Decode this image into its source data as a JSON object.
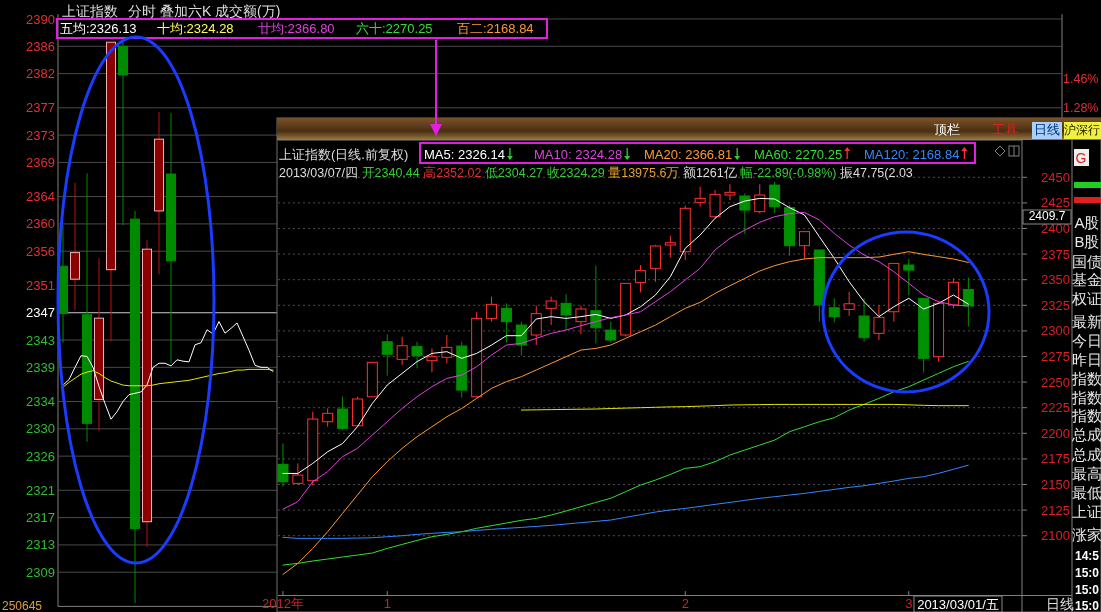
{
  "chart_data": [
    {
      "type": "candlestick",
      "title": "上证指数",
      "subtitle": "分时 叠加六K 成交额(万)",
      "categories": [
        null,
        null,
        null,
        null,
        null,
        null,
        null,
        null,
        null,
        null,
        null,
        null,
        null,
        null,
        null,
        null,
        null,
        null,
        null,
        null,
        null,
        null,
        null,
        null,
        null,
        null,
        null,
        null,
        null,
        null,
        null,
        null,
        null,
        null,
        null,
        null,
        null,
        null,
        null,
        null,
        null,
        null,
        null,
        null,
        null,
        null,
        null,
        null,
        null,
        null,
        null,
        null,
        null,
        null,
        null,
        null,
        null,
        null,
        null,
        null,
        null,
        null,
        null,
        null,
        null,
        null,
        null,
        null,
        null,
        null,
        null,
        null,
        null,
        null,
        null,
        null,
        null,
        null,
        null,
        null,
        null,
        null,
        null,
        null,
        null,
        null,
        null,
        null,
        null,
        null,
        null,
        null,
        null,
        null,
        null,
        null,
        null,
        null,
        null,
        null,
        null,
        null,
        null,
        null,
        null,
        null,
        null,
        null,
        null,
        null,
        null,
        null,
        null,
        null,
        null,
        null,
        null,
        null,
        null,
        null,
        null,
        null,
        null,
        null,
        null,
        null,
        null,
        null,
        null,
        null,
        null,
        null,
        null,
        null,
        null,
        null,
        null,
        null,
        null,
        null,
        null,
        null,
        null,
        null,
        null,
        null,
        null,
        null,
        null,
        null,
        null,
        null,
        null,
        null,
        null,
        null,
        null,
        null,
        null,
        null,
        null,
        null,
        null,
        null,
        null,
        null,
        null
      ],
      "ohlc": [
        [
          2353.8,
          2359.8,
          2342.6,
          2346.9
        ],
        null,
        [
          2351.9,
          2366.0,
          2347.4,
          2355.8
        ],
        null,
        [
          2346.7,
          2367.4,
          2328.1,
          2330.8
        ],
        null,
        [
          2334.3,
          2355.0,
          2329.7,
          2346.2
        ],
        null,
        [
          2353.3,
          2386.6,
          2342.8,
          2386.6
        ],
        null,
        [
          2386.0,
          2386.8,
          2359.8,
          2381.8
        ],
        null,
        [
          2360.7,
          2361.9,
          2304.5,
          2315.4
        ],
        null,
        [
          2316.4,
          2357.6,
          2312.7,
          2356.3
        ],
        null,
        [
          2361.9,
          2376.4,
          2352.6,
          2372.4
        ],
        null,
        [
          2367.3,
          2376.2,
          2339.6,
          2354.6
        ],
        null,
        null,
        null,
        null,
        null,
        null,
        null,
        null,
        null,
        null,
        null,
        null,
        null,
        null,
        null,
        null,
        null,
        null,
        null,
        null,
        null,
        null,
        null,
        null,
        null,
        null,
        null,
        null,
        null,
        null,
        null,
        null,
        null,
        null,
        null,
        null,
        null,
        null,
        null,
        null,
        null,
        null,
        null,
        null,
        null,
        null,
        null,
        null,
        null,
        null,
        null,
        null,
        null,
        null,
        null,
        null,
        null,
        null,
        null,
        null,
        null,
        null,
        null,
        null,
        null,
        null,
        null,
        null,
        null,
        null,
        null,
        null,
        null,
        null,
        null,
        null,
        null,
        null,
        null,
        null,
        null,
        null,
        null,
        null,
        null,
        null,
        null,
        null,
        null,
        null,
        null,
        null,
        null,
        null,
        null,
        null,
        null,
        null,
        null,
        null,
        null,
        null,
        null,
        null,
        null,
        null,
        null,
        null,
        null,
        null,
        null,
        null,
        null,
        null,
        null,
        null,
        null,
        null,
        null,
        null,
        null,
        null,
        null,
        null,
        null,
        null,
        null,
        null,
        null,
        null,
        null,
        null,
        null,
        null,
        null,
        null,
        null,
        null,
        null,
        null,
        null,
        null,
        null,
        null,
        null,
        null,
        null,
        null
      ],
      "series": [
        {
          "type": "line",
          "color": "#ffffff",
          "values": [
            2336.4,
            2337.2,
            2339.0,
            2340.7,
            2340.6,
            2339.0,
            2336.2,
            2333.7,
            2331.4,
            2332.5,
            2334.0,
            2335.0,
            2335.2,
            2335.4,
            2336.4,
            2339.0,
            2339.6,
            2339.6,
            2339.2,
            2340.1,
            2339.9,
            2339.8,
            2342.3,
            2342.6,
            2344.5,
            2343.9,
            2345.7,
            2344.0,
            2344.7,
            2345.5,
            2343.5,
            2341.5,
            2339.3,
            2339.0,
            2339.0,
            2338.4,
            null,
            null,
            null,
            null,
            null,
            null,
            null,
            null,
            null,
            null,
            null,
            null,
            null,
            null,
            null,
            null,
            null,
            null,
            null,
            null,
            null,
            null,
            null,
            null,
            null,
            null,
            null,
            null,
            null,
            null,
            null,
            null,
            null,
            null,
            null,
            null,
            null,
            null,
            null,
            null,
            null,
            null,
            null,
            null,
            null,
            null,
            null,
            null,
            null,
            null,
            null,
            null,
            null,
            null,
            null,
            null,
            null,
            null,
            null,
            null,
            null,
            null,
            null,
            null,
            null,
            null,
            null,
            null,
            null,
            null,
            null,
            null,
            null,
            null,
            null,
            null,
            null,
            null,
            null,
            null,
            null,
            null,
            null,
            null,
            null,
            null,
            null,
            null,
            null,
            null,
            null,
            null,
            null,
            null,
            null,
            null,
            null,
            null,
            null,
            null,
            null,
            null,
            null,
            null,
            null,
            null,
            null,
            null,
            null,
            null,
            null,
            null,
            null,
            null,
            null,
            null,
            null,
            null,
            null,
            null,
            null,
            null,
            null,
            null,
            null,
            null,
            null,
            null,
            null,
            null,
            null
          ]
        },
        {
          "type": "line",
          "color": "#e6e600",
          "values": [
            2336.1,
            2336.8,
            2337.4,
            2338.0,
            2338.3,
            2338.5,
            2338.1,
            2337.5,
            2337.0,
            2336.7,
            2336.4,
            2336.3,
            2336.3,
            2336.3,
            2336.3,
            2336.4,
            2336.6,
            2336.7,
            2336.8,
            2336.9,
            2337.0,
            2337.1,
            2337.3,
            2337.5,
            2337.7,
            2337.9,
            2338.1,
            2338.2,
            2338.4,
            2338.6,
            2338.6,
            2338.7,
            2338.7,
            2338.7,
            2338.7,
            2338.6,
            null,
            null,
            null,
            null,
            null,
            null,
            null,
            null,
            null,
            null,
            null,
            null,
            null,
            null,
            null,
            null,
            null,
            null,
            null,
            null,
            null,
            null,
            null,
            null,
            null,
            null,
            null,
            null,
            null,
            null,
            null,
            null,
            null,
            null,
            null,
            null,
            null,
            null,
            null,
            null,
            null,
            null,
            null,
            null,
            null,
            null,
            null,
            null,
            null,
            null,
            null,
            null,
            null,
            null,
            null,
            null,
            null,
            null,
            null,
            null,
            null,
            null,
            null,
            null,
            null,
            null,
            null,
            null,
            null,
            null,
            null,
            null,
            null,
            null,
            null,
            null,
            null,
            null,
            null,
            null,
            null,
            null,
            null,
            null,
            null,
            null,
            null,
            null,
            null,
            null,
            null,
            null,
            null,
            null,
            null,
            null,
            null,
            null,
            null,
            null,
            null,
            null,
            null,
            null,
            null,
            null,
            null,
            null,
            null,
            null,
            null,
            null,
            null,
            null,
            null,
            null,
            null,
            null,
            null,
            null,
            null,
            null,
            null,
            null,
            null,
            null,
            null,
            null,
            null,
            null,
            null
          ]
        }
      ],
      "ylim": [
        2304,
        2390.7
      ],
      "yticks": [
        2390,
        2386,
        2382,
        2377,
        2373,
        2369,
        2364,
        2360,
        2356,
        2351,
        2347,
        2343,
        2339,
        2334,
        2330,
        2326,
        2321,
        2317,
        2313,
        2309
      ],
      "y2lim": [
        -1.83,
        1.86
      ],
      "y2ticks": [
        {
          "value": 1.46,
          "label": "1.46%"
        },
        {
          "value": 1.28,
          "label": "1.28%"
        }
      ],
      "ref_lines": [
        {
          "axis": "y",
          "value": 2347
        }
      ],
      "grid": "y",
      "annotations": [
        "五均:2326.13",
        "十均:2324.28",
        "廿均:2366.80",
        "六十:2270.25",
        "百二:2168.84",
        "250645"
      ]
    },
    {
      "type": "candlestick",
      "title": "上证指数(日线.前复权)",
      "subtitle": "2013/03/07/四 开2340.44 高2352.02 低2304.27 收2324.29 量13975.6万 额1261亿 幅-22.89(-0.98%) 振47.75(2.03",
      "categories": [
        "2012年",
        null,
        null,
        null,
        null,
        null,
        null,
        "1",
        null,
        null,
        null,
        null,
        null,
        null,
        null,
        null,
        null,
        null,
        null,
        null,
        null,
        null,
        null,
        null,
        null,
        null,
        null,
        "2",
        null,
        null,
        null,
        null,
        null,
        null,
        null,
        null,
        null,
        null,
        null,
        null,
        null,
        null,
        "3",
        null,
        null,
        null,
        null
      ],
      "ohlc": [
        [
          2169.7,
          2190.2,
          2147.8,
          2152.7
        ],
        [
          2151.1,
          2170.6,
          2149.5,
          2159.2
        ],
        [
          2153.7,
          2221.1,
          2149.5,
          2213.9
        ],
        [
          2211.3,
          2224.4,
          2206.4,
          2219.5
        ],
        [
          2223.7,
          2235.7,
          2203.2,
          2204.8
        ],
        [
          2207.4,
          2235.7,
          2206.4,
          2233.5
        ],
        [
          2235.7,
          2269.3,
          2235.7,
          2269.3
        ],
        [
          2289.4,
          2296.6,
          2256.2,
          2277.1
        ],
        [
          2272.2,
          2294.3,
          2266.7,
          2285.5
        ],
        [
          2284.6,
          2289.4,
          2263.4,
          2275.8
        ],
        [
          2270.9,
          2282.9,
          2259.5,
          2274.8
        ],
        [
          2274.2,
          2296.0,
          2268.3,
          2283.9
        ],
        [
          2285.2,
          2289.4,
          2234.8,
          2242.2
        ],
        [
          2235.7,
          2318.1,
          2234.8,
          2312.2
        ],
        [
          2312.2,
          2333.4,
          2309.0,
          2325.9
        ],
        [
          2322.0,
          2326.9,
          2288.8,
          2309.0
        ],
        [
          2305.7,
          2309.0,
          2275.8,
          2286.2
        ],
        [
          2296.0,
          2324.6,
          2286.2,
          2316.8
        ],
        [
          2322.0,
          2333.4,
          2305.7,
          2329.2
        ],
        [
          2326.9,
          2335.7,
          2300.8,
          2315.5
        ],
        [
          2309.0,
          2324.6,
          2296.6,
          2321.4
        ],
        [
          2319.7,
          2363.7,
          2287.8,
          2303.1
        ],
        [
          2300.8,
          2309.0,
          2288.8,
          2291.1
        ],
        [
          2296.0,
          2346.4,
          2294.3,
          2346.4
        ],
        [
          2347.4,
          2364.3,
          2337.6,
          2358.8
        ],
        [
          2361.1,
          2383.9,
          2348.0,
          2382.9
        ],
        [
          2383.9,
          2393.0,
          2371.5,
          2386.1
        ],
        [
          2377.3,
          2422.3,
          2369.2,
          2419.7
        ],
        [
          2425.5,
          2440.8,
          2421.3,
          2429.4
        ],
        [
          2411.5,
          2437.6,
          2409.9,
          2433.3
        ],
        [
          2432.7,
          2443.1,
          2427.8,
          2435.3
        ],
        [
          2431.7,
          2434.3,
          2394.3,
          2418.0
        ],
        [
          2416.4,
          2443.1,
          2414.8,
          2432.7
        ],
        [
          2442.4,
          2445.7,
          2414.8,
          2421.3
        ],
        [
          2420.3,
          2422.9,
          2373.4,
          2383.2
        ],
        [
          2383.2,
          2396.9,
          2370.2,
          2396.9
        ],
        [
          2379.0,
          2379.0,
          2309.0,
          2325.3
        ],
        [
          2322.6,
          2331.8,
          2308.3,
          2313.9
        ],
        [
          2321.0,
          2338.3,
          2314.8,
          2326.5
        ],
        [
          2314.5,
          2331.8,
          2289.4,
          2293.4
        ],
        [
          2297.6,
          2325.3,
          2291.1,
          2313.2
        ],
        [
          2318.7,
          2365.9,
          2309.0,
          2365.9
        ],
        [
          2364.3,
          2370.2,
          2335.0,
          2359.4
        ],
        [
          2331.8,
          2331.8,
          2259.5,
          2273.2
        ],
        [
          2274.8,
          2328.5,
          2269.9,
          2326.9
        ],
        [
          2325.3,
          2351.3,
          2322.0,
          2347.4
        ],
        [
          2340.44,
          2352.02,
          2304.27,
          2324.29
        ]
      ],
      "series": [
        {
          "type": "line",
          "name": "MA5: 2326.14",
          "color": "#ffffff",
          "values": [
            2160.8,
            2160.8,
            2170.6,
            2182.0,
            2190.0,
            2206.4,
            2229.2,
            2247.1,
            2258.5,
            2270.0,
            2278.0,
            2279.7,
            2273.2,
            2278.0,
            2286.2,
            2295.3,
            2295.3,
            2311.6,
            2313.9,
            2312.2,
            2313.9,
            2316.1,
            2312.2,
            2315.5,
            2323.6,
            2335.0,
            2352.9,
            2380.6,
            2393.6,
            2409.9,
            2421.3,
            2426.8,
            2429.4,
            2428.8,
            2420.3,
            2413.2,
            2392.0,
            2370.8,
            2348.0,
            2328.5,
            2313.9,
            2323.6,
            2331.8,
            2321.3,
            2326.9,
            2335.0,
            2326.14
          ]
        },
        {
          "type": "line",
          "name": "MA10: 2324.28",
          "color": "#e040e0",
          "values": [
            2126.0,
            2133.2,
            2152.7,
            2162.5,
            2177.2,
            2185.3,
            2198.3,
            2211.3,
            2224.3,
            2235.7,
            2245.5,
            2253.6,
            2256.9,
            2265.0,
            2276.4,
            2286.2,
            2287.8,
            2292.7,
            2297.6,
            2300.8,
            2305.1,
            2309.0,
            2312.9,
            2315.5,
            2318.7,
            2328.5,
            2338.3,
            2349.7,
            2361.1,
            2379.0,
            2390.4,
            2398.5,
            2406.0,
            2411.5,
            2414.4,
            2415.7,
            2408.3,
            2395.2,
            2383.8,
            2374.1,
            2367.6,
            2357.8,
            2346.4,
            2335.0,
            2328.5,
            2325.3,
            2324.28
          ]
        },
        {
          "type": "line",
          "name": "MA20: 2366.81",
          "color": "#ff9933",
          "values": [
            2062.2,
            2073.0,
            2087.6,
            2103.9,
            2121.8,
            2139.7,
            2157.6,
            2172.3,
            2185.3,
            2196.7,
            2206.4,
            2216.2,
            2224.3,
            2234.1,
            2243.9,
            2250.4,
            2255.3,
            2261.8,
            2268.3,
            2274.8,
            2281.3,
            2282.9,
            2286.2,
            2292.7,
            2299.2,
            2305.7,
            2313.9,
            2322.0,
            2327.9,
            2336.6,
            2344.1,
            2351.3,
            2358.5,
            2363.7,
            2367.6,
            2370.2,
            2371.5,
            2371.5,
            2371.5,
            2371.5,
            2372.1,
            2374.7,
            2377.3,
            2374.7,
            2372.5,
            2370.2,
            2366.81
          ]
        },
        {
          "type": "line",
          "name": "MA60: 2270.25",
          "color": "#33dd33",
          "values": [
            2071.3,
            2073.0,
            2075.3,
            2077.2,
            2079.2,
            2081.1,
            2083.1,
            2087.6,
            2091.5,
            2095.4,
            2099.0,
            2101.3,
            2103.9,
            2107.2,
            2109.8,
            2112.4,
            2115.0,
            2116.9,
            2120.2,
            2124.1,
            2128.3,
            2132.5,
            2136.5,
            2143.0,
            2149.5,
            2154.3,
            2159.9,
            2165.8,
            2167.4,
            2172.3,
            2178.8,
            2183.7,
            2188.5,
            2193.4,
            2201.6,
            2206.4,
            2211.3,
            2215.2,
            2222.7,
            2228.3,
            2234.1,
            2240.6,
            2245.5,
            2252.0,
            2258.5,
            2265.0,
            2270.25
          ]
        },
        {
          "type": "line",
          "name": "MA120: 2168.84",
          "color": "#3388ff",
          "values": [
            2098.4,
            2097.4,
            2097.4,
            2097.4,
            2097.4,
            2097.7,
            2098.0,
            2099.0,
            2100.0,
            2101.3,
            2102.3,
            2103.2,
            2103.9,
            2105.2,
            2106.2,
            2107.2,
            2108.1,
            2109.1,
            2110.1,
            2111.4,
            2112.7,
            2114.0,
            2115.3,
            2117.9,
            2120.5,
            2123.1,
            2125.1,
            2126.7,
            2128.6,
            2130.6,
            2132.5,
            2134.5,
            2136.5,
            2138.1,
            2139.7,
            2141.3,
            2143.3,
            2145.2,
            2147.2,
            2148.8,
            2151.1,
            2153.4,
            2156.0,
            2157.6,
            2160.9,
            2164.8,
            2168.84
          ]
        },
        {
          "type": "line",
          "color": "#e6e600",
          "values": [
            null,
            null,
            null,
            null,
            null,
            null,
            null,
            null,
            null,
            null,
            null,
            null,
            null,
            null,
            null,
            null,
            2222.7,
            2222.9,
            2223.1,
            2223.3,
            2223.5,
            2223.7,
            2224.2,
            2224.6,
            2225.0,
            2225.4,
            2225.8,
            2226.0,
            2226.5,
            2227.0,
            2227.6,
            2227.8,
            2228.0,
            2228.2,
            2228.2,
            2228.2,
            2228.2,
            2228.2,
            2228.2,
            2228.2,
            2228.2,
            2228.2,
            2227.8,
            2227.3,
            2227.0,
            2227.0,
            2227.0
          ]
        }
      ],
      "ylim": [
        2042,
        2486.4
      ],
      "yticks": [
        2100,
        2125,
        2150,
        2175,
        2200,
        2225,
        2250,
        2275,
        2300,
        2325,
        2350,
        2375,
        2400,
        2425,
        2450
      ],
      "grid": "y",
      "annotations": [
        "2409.7",
        "2013/03/01/五",
        "日线"
      ]
    },
    {
      "type": "other",
      "annotations": [
        "顶栏",
        "工具",
        "日线",
        "沪深行",
        "G",
        "A股",
        "B股",
        "国债",
        "基金",
        "权证",
        "最新",
        "今日",
        "昨日",
        "指数",
        "指数",
        "指数",
        "总成",
        "总成",
        "最高",
        "最低",
        "上证",
        "涨家",
        "14:5",
        "15:0",
        "15:0",
        "15:0"
      ]
    }
  ]
}
